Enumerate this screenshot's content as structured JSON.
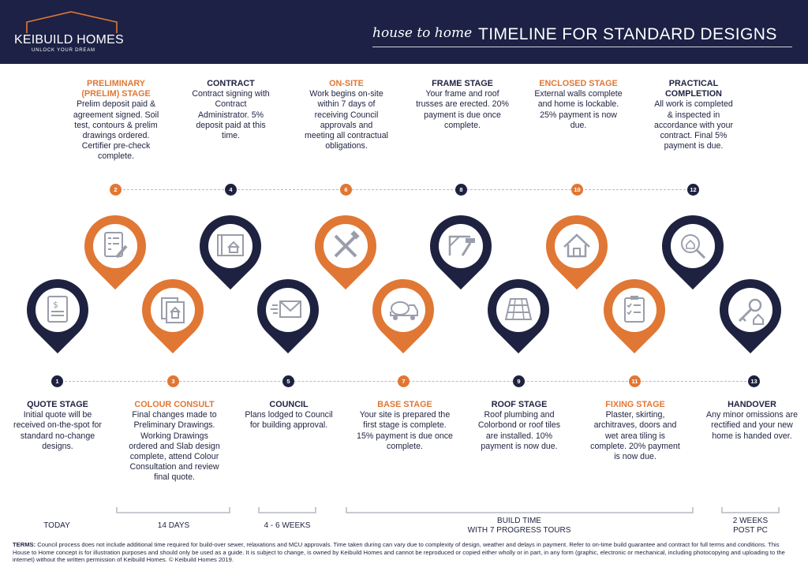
{
  "header": {
    "brand_name": "KEIBUILD HOMES",
    "brand_tagline": "UNLOCK YOUR DREAM",
    "title_script": "house to home",
    "title_main": "TIMELINE FOR STANDARD DESIGNS"
  },
  "colors": {
    "navy": "#1e2240",
    "orange": "#e07734",
    "header_bg": "#1c2145"
  },
  "stages": [
    {
      "number": "1",
      "title": "QUOTE STAGE",
      "description": "Initial quote will be received on-the-spot for standard no-change designs.",
      "icon": "quote-document-icon",
      "color": "navy"
    },
    {
      "number": "2",
      "title": "PRELIMINARY (PRELIM) STAGE",
      "description": "Prelim deposit paid & agreement signed. Soil test, contours & prelim drawings ordered. Certifier pre-check complete.",
      "icon": "checklist-pencil-icon",
      "color": "orange"
    },
    {
      "number": "3",
      "title": "COLOUR CONSULT",
      "description": "Final changes made to Preliminary Drawings. Working Drawings ordered and Slab design complete, attend Colour Consultation and review final quote.",
      "icon": "house-drawings-icon",
      "color": "orange"
    },
    {
      "number": "4",
      "title": "CONTRACT",
      "description": "Contract signing with Contract Administrator. 5% deposit paid at this time.",
      "icon": "blueprint-icon",
      "color": "navy"
    },
    {
      "number": "5",
      "title": "COUNCIL",
      "description": "Plans lodged to Council for building approval.",
      "icon": "envelope-icon",
      "color": "navy"
    },
    {
      "number": "6",
      "title": "ON-SITE",
      "description": "Work begins on-site within 7 days of receiving Council approvals and meeting all contractual obligations.",
      "icon": "tools-icon",
      "color": "orange"
    },
    {
      "number": "7",
      "title": "BASE STAGE",
      "description": "Your site is prepared the first stage is complete. 15% payment is due once complete.",
      "icon": "concrete-truck-icon",
      "color": "orange"
    },
    {
      "number": "8",
      "title": "FRAME STAGE",
      "description": "Your frame and roof trusses are erected. 20% payment is due once complete.",
      "icon": "frame-hammer-icon",
      "color": "navy"
    },
    {
      "number": "9",
      "title": "ROOF STAGE",
      "description": "Roof plumbing and Colorbond or roof tiles are installed. 10% payment is now due.",
      "icon": "roof-tiles-icon",
      "color": "navy"
    },
    {
      "number": "10",
      "title": "ENCLOSED STAGE",
      "description": "External walls complete and home is lockable. 25% payment is now due.",
      "icon": "house-icon",
      "color": "orange"
    },
    {
      "number": "11",
      "title": "FIXING STAGE",
      "description": "Plaster, skirting, architraves, doors and wet area tiling is complete. 20% payment is now due.",
      "icon": "clipboard-checklist-icon",
      "color": "orange"
    },
    {
      "number": "12",
      "title": "PRACTICAL COMPLETION",
      "description": "All work is completed & inspected in accordance with your contract. Final 5% payment is due.",
      "icon": "house-magnifier-icon",
      "color": "navy"
    },
    {
      "number": "13",
      "title": "HANDOVER",
      "description": "Any minor omissions are rectified and your new home is handed over.",
      "icon": "house-key-icon",
      "color": "navy"
    }
  ],
  "durations": [
    {
      "label": "TODAY"
    },
    {
      "label": "14 DAYS"
    },
    {
      "label": "4 - 6 WEEKS"
    },
    {
      "line1": "BUILD TIME",
      "line2": "WITH 7 PROGRESS TOURS"
    },
    {
      "line1": "2 WEEKS",
      "line2": "POST PC"
    }
  ],
  "terms": {
    "label": "TERMS:",
    "text": "Council process does not include additional time required for build-over sewer, relaxations and MCU approvals. Time taken during can vary due to complexity of design, weather and delays in payment. Refer to on-time build guarantee and contract for full terms and conditions. This House to Home concept is for illustration purposes and should only be used as a guide. It is subject to change, is owned by Keibuild Homes and cannot be reproduced or copied either wholly or in part, in any form (graphic, electronic or mechanical, including photocopying and uploading to the internet) without the written permission of Keibuild Homes. © Keibuild Homes 2019."
  }
}
